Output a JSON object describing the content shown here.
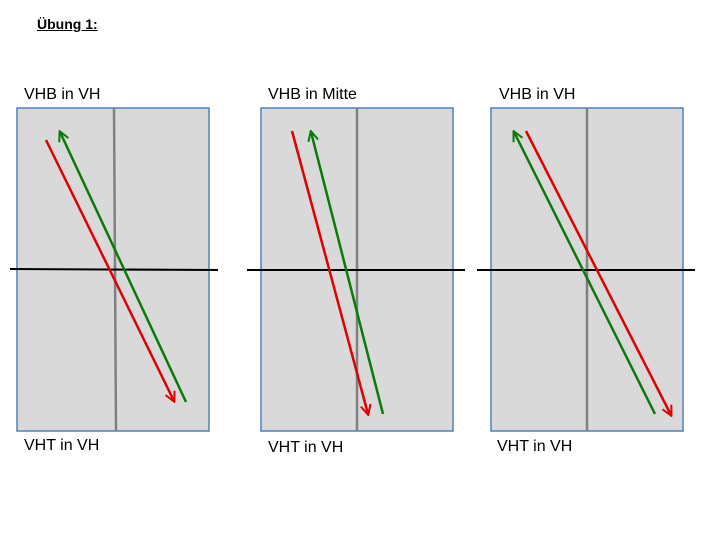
{
  "title": "Übung 1:",
  "diagrams": [
    {
      "top_label": "VHB in VH",
      "bottom_label": "VHT in VH",
      "red_arrow": {
        "from": "top-left",
        "to": "bottom"
      },
      "green_arrow": {
        "from": "bottom",
        "to": "top-left"
      }
    },
    {
      "top_label": "VHB in Mitte",
      "bottom_label": "VHT in VH",
      "red_arrow": {
        "from": "top-left",
        "to": "bottom"
      },
      "green_arrow": {
        "from": "bottom",
        "to": "top-left"
      }
    },
    {
      "top_label": "VHB in VH",
      "bottom_label": "VHT in VH",
      "red_arrow": {
        "from": "top-left",
        "to": "bottom-right"
      },
      "green_arrow": {
        "from": "bottom-right",
        "to": "top-left"
      }
    }
  ],
  "colors": {
    "box_fill": "#d9d9d9",
    "box_border": "#4f81bd",
    "vertical_line": "#808080",
    "horizontal_line": "#000000",
    "red_arrow": "#e00000",
    "green_arrow": "#0a7a0a"
  }
}
